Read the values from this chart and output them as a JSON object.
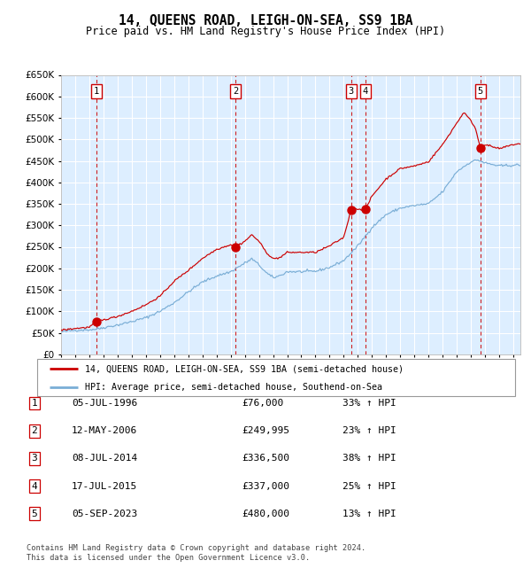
{
  "title": "14, QUEENS ROAD, LEIGH-ON-SEA, SS9 1BA",
  "subtitle": "Price paid vs. HM Land Registry's House Price Index (HPI)",
  "legend_red": "14, QUEENS ROAD, LEIGH-ON-SEA, SS9 1BA (semi-detached house)",
  "legend_blue": "HPI: Average price, semi-detached house, Southend-on-Sea",
  "footer": "Contains HM Land Registry data © Crown copyright and database right 2024.\nThis data is licensed under the Open Government Licence v3.0.",
  "sale_dates_x": [
    1996.51,
    2006.36,
    2014.52,
    2015.54,
    2023.67
  ],
  "sale_prices_y": [
    76000,
    249995,
    336500,
    337000,
    480000
  ],
  "sale_labels": [
    "1",
    "2",
    "3",
    "4",
    "5"
  ],
  "vline_x": [
    1996.51,
    2006.36,
    2014.52,
    2015.54,
    2023.67
  ],
  "table_rows": [
    [
      "1",
      "05-JUL-1996",
      "£76,000",
      "33% ↑ HPI"
    ],
    [
      "2",
      "12-MAY-2006",
      "£249,995",
      "23% ↑ HPI"
    ],
    [
      "3",
      "08-JUL-2014",
      "£336,500",
      "38% ↑ HPI"
    ],
    [
      "4",
      "17-JUL-2015",
      "£337,000",
      "25% ↑ HPI"
    ],
    [
      "5",
      "05-SEP-2023",
      "£480,000",
      "13% ↑ HPI"
    ]
  ],
  "red_color": "#cc0000",
  "blue_color": "#7aaed6",
  "bg_color": "#ddeeff",
  "grid_color": "#ffffff",
  "vline_color": "#cc0000",
  "ylim": [
    0,
    650000
  ],
  "xlim_start": 1994.0,
  "xlim_end": 2026.5,
  "ytick_step": 50000,
  "hpi_blue_anchors": [
    [
      1994.0,
      52000
    ],
    [
      1995.0,
      56000
    ],
    [
      1996.0,
      57000
    ],
    [
      1996.5,
      58500
    ],
    [
      1997.0,
      62000
    ],
    [
      1998.0,
      68000
    ],
    [
      1999.0,
      76000
    ],
    [
      2000.0,
      85000
    ],
    [
      2001.0,
      100000
    ],
    [
      2002.0,
      120000
    ],
    [
      2003.0,
      145000
    ],
    [
      2004.0,
      168000
    ],
    [
      2005.0,
      182000
    ],
    [
      2006.0,
      192000
    ],
    [
      2007.0,
      212000
    ],
    [
      2007.5,
      222000
    ],
    [
      2008.0,
      208000
    ],
    [
      2008.5,
      190000
    ],
    [
      2009.0,
      178000
    ],
    [
      2009.5,
      183000
    ],
    [
      2010.0,
      192000
    ],
    [
      2011.0,
      192000
    ],
    [
      2012.0,
      193000
    ],
    [
      2013.0,
      202000
    ],
    [
      2014.0,
      218000
    ],
    [
      2015.0,
      252000
    ],
    [
      2016.0,
      295000
    ],
    [
      2017.0,
      325000
    ],
    [
      2018.0,
      340000
    ],
    [
      2019.0,
      346000
    ],
    [
      2020.0,
      350000
    ],
    [
      2021.0,
      378000
    ],
    [
      2022.0,
      425000
    ],
    [
      2023.0,
      448000
    ],
    [
      2023.5,
      452000
    ],
    [
      2024.0,
      445000
    ],
    [
      2025.0,
      438000
    ],
    [
      2026.0,
      440000
    ],
    [
      2026.5,
      440000
    ]
  ],
  "hpi_red_anchors": [
    [
      1994.0,
      56000
    ],
    [
      1995.0,
      60000
    ],
    [
      1996.0,
      63000
    ],
    [
      1996.51,
      76000
    ],
    [
      1997.0,
      80000
    ],
    [
      1998.0,
      88000
    ],
    [
      1999.0,
      100000
    ],
    [
      2000.0,
      115000
    ],
    [
      2001.0,
      135000
    ],
    [
      2002.0,
      170000
    ],
    [
      2003.0,
      195000
    ],
    [
      2004.0,
      223000
    ],
    [
      2005.0,
      244000
    ],
    [
      2006.0,
      255000
    ],
    [
      2006.36,
      250000
    ],
    [
      2007.0,
      263000
    ],
    [
      2007.5,
      278000
    ],
    [
      2008.0,
      263000
    ],
    [
      2008.5,
      238000
    ],
    [
      2009.0,
      222000
    ],
    [
      2009.5,
      225000
    ],
    [
      2010.0,
      237000
    ],
    [
      2011.0,
      237000
    ],
    [
      2012.0,
      237000
    ],
    [
      2013.0,
      252000
    ],
    [
      2014.0,
      272000
    ],
    [
      2014.52,
      336500
    ],
    [
      2015.0,
      338000
    ],
    [
      2015.54,
      337000
    ],
    [
      2016.0,
      368000
    ],
    [
      2017.0,
      408000
    ],
    [
      2018.0,
      432000
    ],
    [
      2019.0,
      438000
    ],
    [
      2020.0,
      448000
    ],
    [
      2021.0,
      488000
    ],
    [
      2022.0,
      538000
    ],
    [
      2022.5,
      563000
    ],
    [
      2023.0,
      543000
    ],
    [
      2023.3,
      528000
    ],
    [
      2023.67,
      480000
    ],
    [
      2024.0,
      488000
    ],
    [
      2025.0,
      478000
    ],
    [
      2026.0,
      488000
    ],
    [
      2026.5,
      490000
    ]
  ]
}
